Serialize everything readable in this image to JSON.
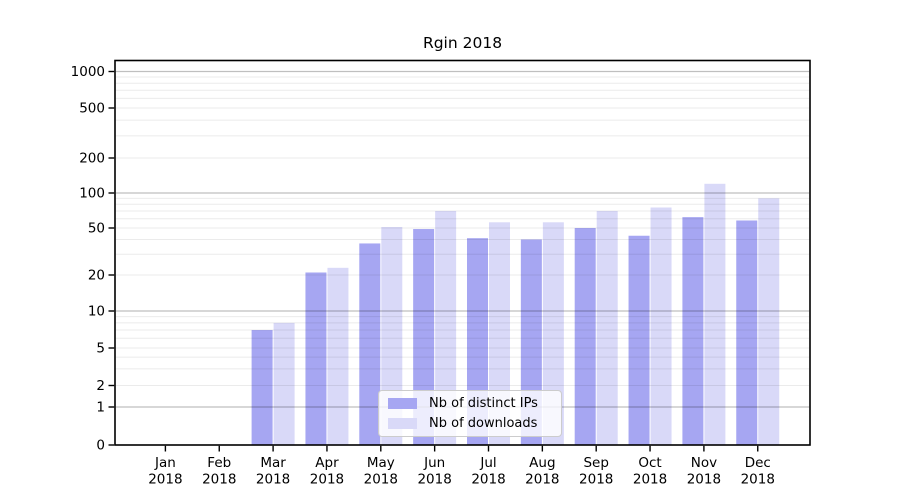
{
  "chart_data": {
    "type": "bar",
    "title": "Rgin 2018",
    "categories": [
      "Jan 2018",
      "Feb 2018",
      "Mar 2018",
      "Apr 2018",
      "May 2018",
      "Jun 2018",
      "Jul 2018",
      "Aug 2018",
      "Sep 2018",
      "Oct 2018",
      "Nov 2018",
      "Dec 2018"
    ],
    "series": [
      {
        "name": "Nb of distinct IPs",
        "color": "#a6a6f2",
        "values": [
          0,
          0,
          7,
          21,
          37,
          49,
          41,
          40,
          50,
          43,
          62,
          58
        ]
      },
      {
        "name": "Nb of downloads",
        "color": "#d9d9f8",
        "values": [
          0,
          0,
          8,
          23,
          51,
          70,
          56,
          56,
          70,
          75,
          120,
          90
        ]
      }
    ],
    "y_axis": {
      "scale": "symlog",
      "ticks": [
        0,
        1,
        2,
        5,
        10,
        20,
        50,
        100,
        200,
        500,
        1000
      ],
      "ylim": [
        0,
        1250
      ]
    },
    "x_axis": {
      "tick_label_lines": 2
    },
    "grid": "on",
    "legend_position": "lower center inside plot",
    "colors": {
      "axis": "#000000",
      "major_gridline": "#bcbcbc",
      "minor_gridline": "#ebebeb",
      "text": "#000000",
      "background": "#ffffff"
    }
  }
}
